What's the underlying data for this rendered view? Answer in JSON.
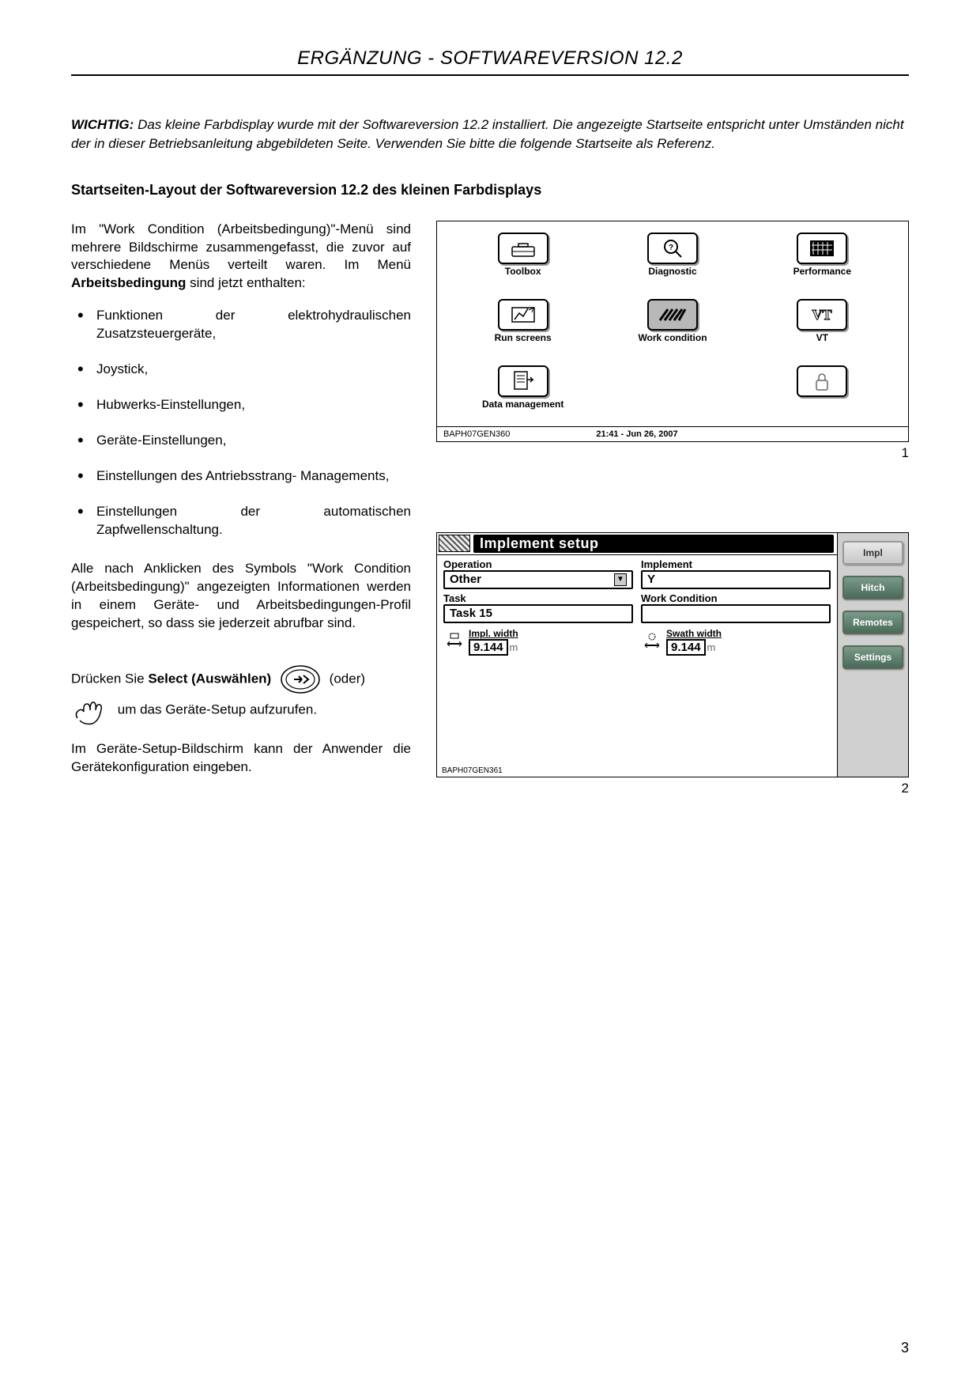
{
  "header": {
    "title": "ERGÄNZUNG - SOFTWAREVERSION 12.2"
  },
  "important": {
    "label": "WICHTIG:",
    "text": "Das kleine Farbdisplay wurde mit der Softwareversion 12.2 installiert. Die angezeigte Startseite entspricht unter Umständen nicht der in dieser Betriebsanleitung abgebildeten Seite. Verwenden Sie bitte die folgende Startseite als Referenz."
  },
  "section_title": "Startseiten-Layout der Softwareversion 12.2 des kleinen Farbdisplays",
  "intro_p1a": "Im \"Work Condition (Arbeitsbedingung)\"-Menü sind mehrere Bildschirme zusammengefasst, die zuvor auf verschiedene Menüs verteilt waren. Im Menü ",
  "intro_p1b": "Arbeitsbedingung",
  "intro_p1c": " sind jetzt enthalten:",
  "bullets": [
    "Funktionen der elektrohydraulischen Zusatzsteuergeräte,",
    "Joystick,",
    "Hubwerks-Einstellungen,",
    "Geräte-Einstellungen,",
    "Einstellungen des Antriebsstrang- Managements,",
    "Einstellungen der automatischen Zapfwellenschaltung."
  ],
  "para_after": "Alle nach Anklicken des Symbols \"Work Condition (Arbeitsbedingung)\" angezeigten Informationen werden in einem Geräte- und Arbeitsbedingungen-Profil gespeichert, so dass sie jederzeit abrufbar sind.",
  "select_line_a": "Drücken Sie ",
  "select_line_b": "Select (Auswählen)",
  "select_line_c": " (oder) ",
  "select_line_d": " um das Geräte-Setup aufzurufen.",
  "para_setup": "Im Geräte-Setup-Bildschirm kann der Anwender die Gerätekonfiguration eingeben.",
  "screen1": {
    "items": [
      {
        "label": "Toolbox",
        "name": "toolbox-icon"
      },
      {
        "label": "Diagnostic",
        "name": "diagnostic-icon"
      },
      {
        "label": "Performance",
        "name": "performance-icon"
      },
      {
        "label": "Run screens",
        "name": "run-screens-icon"
      },
      {
        "label": "Work condition",
        "name": "work-condition-icon",
        "active": true
      },
      {
        "label": "VT",
        "name": "vt-icon"
      },
      {
        "label": "Data management",
        "name": "data-management-icon"
      },
      {
        "label": "",
        "name": "empty"
      },
      {
        "label": "",
        "name": "lock-icon"
      }
    ],
    "ref": "BAPH07GEN360",
    "time": "21:41 - Jun 26, 2007",
    "fig": "1"
  },
  "screen2": {
    "title": "Implement setup",
    "operation_lbl": "Operation",
    "operation_val": "Other",
    "implement_lbl": "Implement",
    "implement_val": "Y",
    "task_lbl": "Task",
    "task_val": "Task 15",
    "workcond_lbl": "Work Condition",
    "workcond_val": "",
    "implwidth_lbl": "Impl. width",
    "implwidth_val": "9.144",
    "swath_lbl": "Swath width",
    "swath_val": "9.144",
    "unit": "m",
    "side": [
      "Impl",
      "Hitch",
      "Remotes",
      "Settings"
    ],
    "ref": "BAPH07GEN361",
    "fig": "2"
  },
  "page_number": "3",
  "colors": {
    "side_btn_bg_top": "#7a9a8a",
    "side_btn_bg_bot": "#4a6a5a",
    "side_panel_bg": "#d0d0d0",
    "icon_active_bg": "#b8b8b8"
  }
}
